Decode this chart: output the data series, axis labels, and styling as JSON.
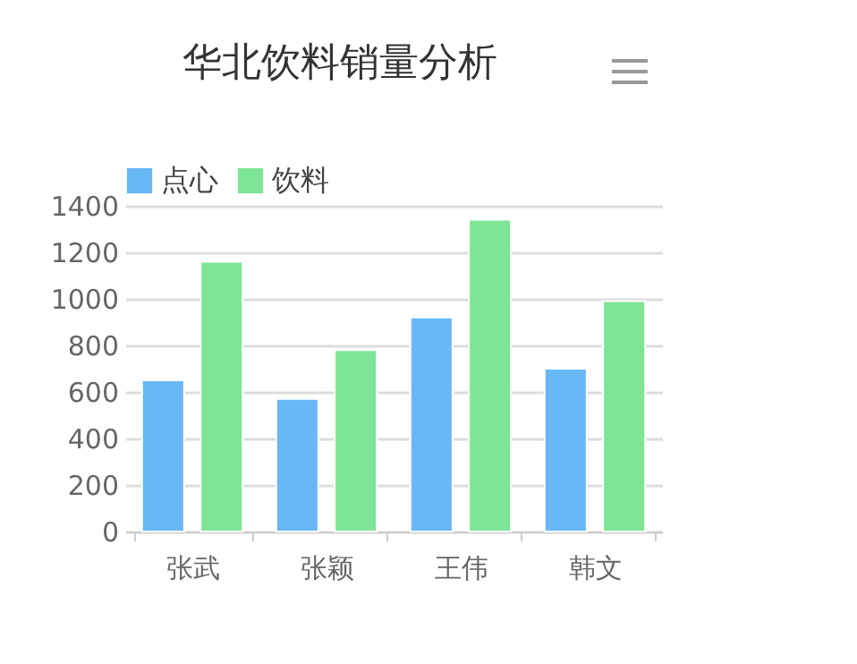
{
  "chart_data": {
    "type": "bar",
    "title": "华北饮料销量分析",
    "categories": [
      "张武",
      "张颖",
      "王伟",
      "韩文"
    ],
    "series": [
      {
        "name": "点心",
        "color": "#68b8f6",
        "values": [
          650,
          570,
          920,
          700
        ]
      },
      {
        "name": "饮料",
        "color": "#7ee496",
        "values": [
          1160,
          780,
          1340,
          990
        ]
      }
    ],
    "ylim": [
      0,
      1400
    ],
    "yticks": [
      0,
      200,
      400,
      600,
      800,
      1000,
      1200,
      1400
    ],
    "grid": "y",
    "legend": "top"
  }
}
